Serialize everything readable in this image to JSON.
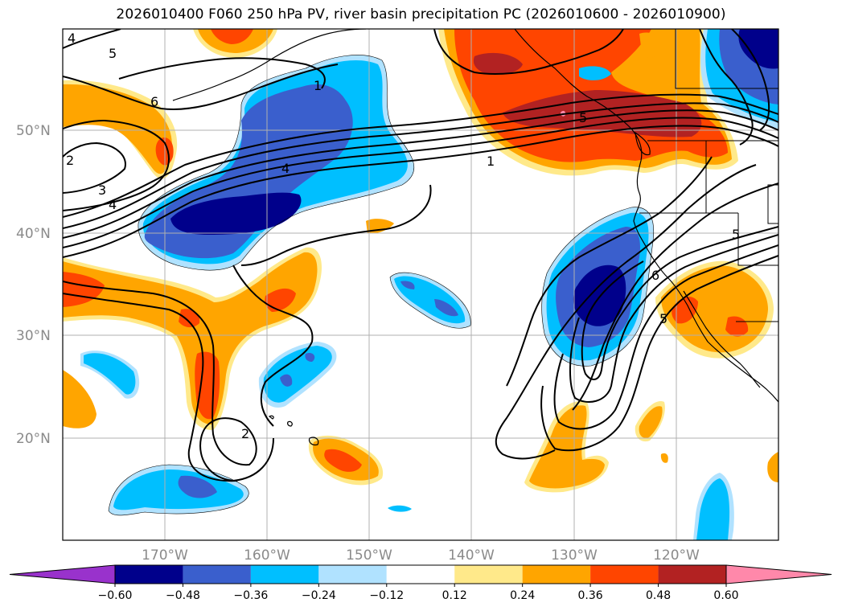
{
  "title": "2026010400 F060 250 hPa PV, river basin precipitation PC (2026010600 - 2026010900)",
  "lat_labels": [
    "50°N",
    "40°N",
    "30°N",
    "20°N"
  ],
  "lon_labels": [
    "170°W",
    "160°W",
    "150°W",
    "140°W",
    "130°W",
    "120°W"
  ],
  "colorbar": {
    "tick_labels": [
      "−0.60",
      "−0.48",
      "−0.36",
      "−0.24",
      "−0.12",
      "0.12",
      "0.24",
      "0.36",
      "0.48",
      "0.60"
    ],
    "colors": [
      "#9932CC",
      "#00008B",
      "#3A5FCD",
      "#00BFFF",
      "#B0E2FF",
      "#FFFFFF",
      "#FFE98A",
      "#FFA500",
      "#FF4500",
      "#B22222",
      "#FF88AA"
    ]
  },
  "contour_labels": [
    "4",
    "5",
    "6",
    "2",
    "3",
    "4",
    "4",
    "1",
    "1",
    "5",
    "2",
    "5",
    "6",
    "5"
  ],
  "colors": {
    "neg_strong": "#00008B",
    "neg_mid": "#3A5FCD",
    "neg_light": "#00BFFF",
    "neg_faint": "#B0E2FF",
    "pos_faint": "#FFE98A",
    "pos_light": "#FFA500",
    "pos_mid": "#FF4500",
    "pos_strong": "#B22222",
    "pos_max": "#FF88AA"
  }
}
